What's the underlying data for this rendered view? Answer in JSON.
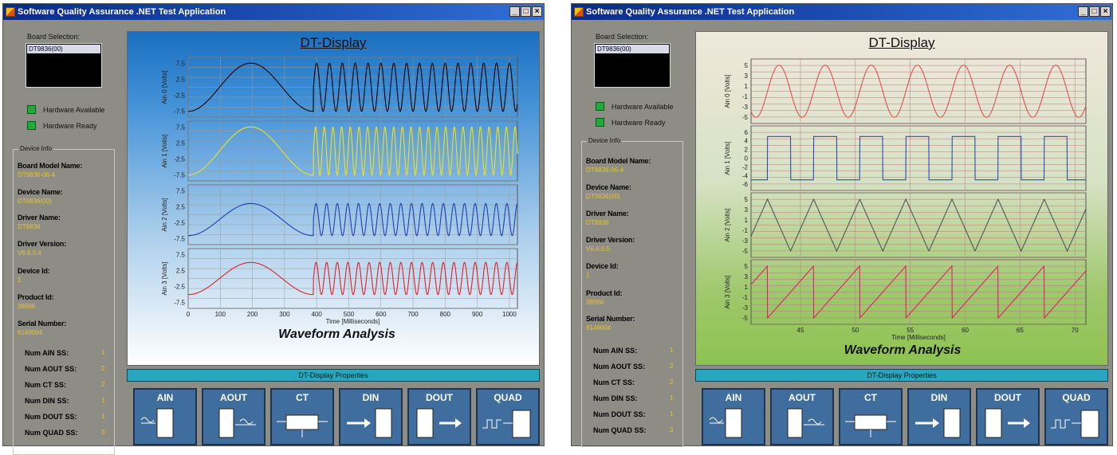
{
  "windows": [
    {
      "title": "Software Quality Assurance .NET Test Application",
      "board_label": "Board Selection:",
      "board_item": "DT9836(00)",
      "leds": [
        "Hardware Available",
        "Hardware Ready"
      ],
      "device_info_legend": "Device Info",
      "info": [
        {
          "name": "Board Model Name:",
          "value": "DT9836-06-4"
        },
        {
          "name": "Device Name:",
          "value": "DT9836(00)"
        },
        {
          "name": "Driver Name:",
          "value": "DT9836"
        },
        {
          "name": "Driver Version:",
          "value": "V6.6.0.4"
        },
        {
          "name": "Device Id:",
          "value": "1"
        },
        {
          "name": "Product Id:",
          "value": "38966"
        },
        {
          "name": "Serial Number:",
          "value": "6149004"
        }
      ],
      "subsystems": [
        {
          "name": "Num AIN SS:",
          "value": "1"
        },
        {
          "name": "Num AOUT SS:",
          "value": "2"
        },
        {
          "name": "Num CT SS:",
          "value": "2"
        },
        {
          "name": "Num DIN SS:",
          "value": "1"
        },
        {
          "name": "Num DOUT SS:",
          "value": "1"
        },
        {
          "name": "Num QUAD SS:",
          "value": "3"
        }
      ],
      "display_title": "DT-Display",
      "plot_title": "Waveform Analysis",
      "props_label": "DT-Display Properties",
      "buttons": [
        "AIN",
        "AOUT",
        "CT",
        "DIN",
        "DOUT",
        "QUAD"
      ]
    },
    {
      "title": "Software Quality Assurance .NET Test Application",
      "board_label": "Board Selection:",
      "board_item": "DT9836(00)",
      "leds": [
        "Hardware Available",
        "Hardware Ready"
      ],
      "device_info_legend": "Device Info",
      "info": [
        {
          "name": "Board Model Name:",
          "value": "DT9836-06-4"
        },
        {
          "name": "Device Name:",
          "value": "DT9836(00)"
        },
        {
          "name": "Driver Name:",
          "value": "DT9836"
        },
        {
          "name": "Driver Version:",
          "value": "V6.6.0.5"
        },
        {
          "name": "Device Id:",
          "value": "1"
        },
        {
          "name": "Product Id:",
          "value": "38966"
        },
        {
          "name": "Serial Number:",
          "value": "6149004"
        }
      ],
      "subsystems": [
        {
          "name": "Num AIN SS:",
          "value": "1"
        },
        {
          "name": "Num AOUT SS:",
          "value": "2"
        },
        {
          "name": "Num CT SS:",
          "value": "2"
        },
        {
          "name": "Num DIN SS:",
          "value": "1"
        },
        {
          "name": "Num DOUT SS:",
          "value": "1"
        },
        {
          "name": "Num QUAD SS:",
          "value": "3"
        }
      ],
      "display_title": "DT-Display",
      "plot_title": "Waveform Analysis",
      "props_label": "DT-Display Properties",
      "buttons": [
        "AIN",
        "AOUT",
        "CT",
        "DIN",
        "DOUT",
        "QUAD"
      ]
    }
  ],
  "chart_data": [
    {
      "type": "line",
      "title": "Waveform Analysis",
      "xlabel": "Time [Milliseconds]",
      "xlim": [
        0,
        1025
      ],
      "x_ticks": [
        "0",
        "100",
        "200",
        "300",
        "400",
        "500",
        "600",
        "700",
        "800",
        "900",
        "1000"
      ],
      "y_ticks": [
        "7.5",
        "2.5",
        "-2.5",
        "-7.5"
      ],
      "series": [
        {
          "name": "Ain 0 [Volts]",
          "color": "#000000",
          "waveform": "sine",
          "amplitude": 7.5,
          "offset": 0,
          "slow_segment_ms": [
            0,
            390
          ],
          "slow_period_ms": 390,
          "fast_period_ms": 40
        },
        {
          "name": "Ain 1 [Volts]",
          "color": "#e8e41e",
          "waveform": "sine",
          "amplitude": 7.5,
          "offset": 0,
          "slow_segment_ms": [
            0,
            390
          ],
          "slow_period_ms": 390,
          "fast_period_ms": 27
        },
        {
          "name": "Ain 2 [Volts]",
          "color": "#1f3fb4",
          "waveform": "sine",
          "amplitude": 5,
          "offset": -1.5,
          "slow_segment_ms": [
            0,
            390
          ],
          "slow_period_ms": 390,
          "fast_period_ms": 33
        },
        {
          "name": "Ain 3 [Volts]",
          "color": "#e0202a",
          "waveform": "sine",
          "amplitude": 5,
          "offset": 0,
          "slow_segment_ms": [
            0,
            390
          ],
          "slow_period_ms": 390,
          "fast_period_ms": 33
        }
      ]
    },
    {
      "type": "line",
      "title": "Waveform Analysis",
      "xlabel": "Time [Milliseconds]",
      "xlim": [
        40.5,
        71
      ],
      "x_ticks": [
        "45",
        "50",
        "55",
        "60",
        "65",
        "70"
      ],
      "y_ticks": [
        "5",
        "3",
        "1",
        "-1",
        "-3",
        "-5"
      ],
      "y_ticks_square": [
        "6",
        "4",
        "2",
        "0",
        "-2",
        "-4",
        "-6"
      ],
      "series": [
        {
          "name": "Ain 0 [Volts]",
          "color": "#e05050",
          "waveform": "sine",
          "amplitude": 5,
          "period_ms": 4.2
        },
        {
          "name": "Ain 1 [Volts]",
          "color": "#2a4fb4",
          "waveform": "square",
          "high": 5,
          "low": -5,
          "period_ms": 4.2
        },
        {
          "name": "Ain 2 [Volts]",
          "color": "#555555",
          "waveform": "triangle",
          "amplitude": 5,
          "period_ms": 4.2
        },
        {
          "name": "Ain 3 [Volts]",
          "color": "#e0206a",
          "waveform": "sawtooth",
          "amplitude": 5,
          "period_ms": 4.2
        }
      ]
    }
  ]
}
